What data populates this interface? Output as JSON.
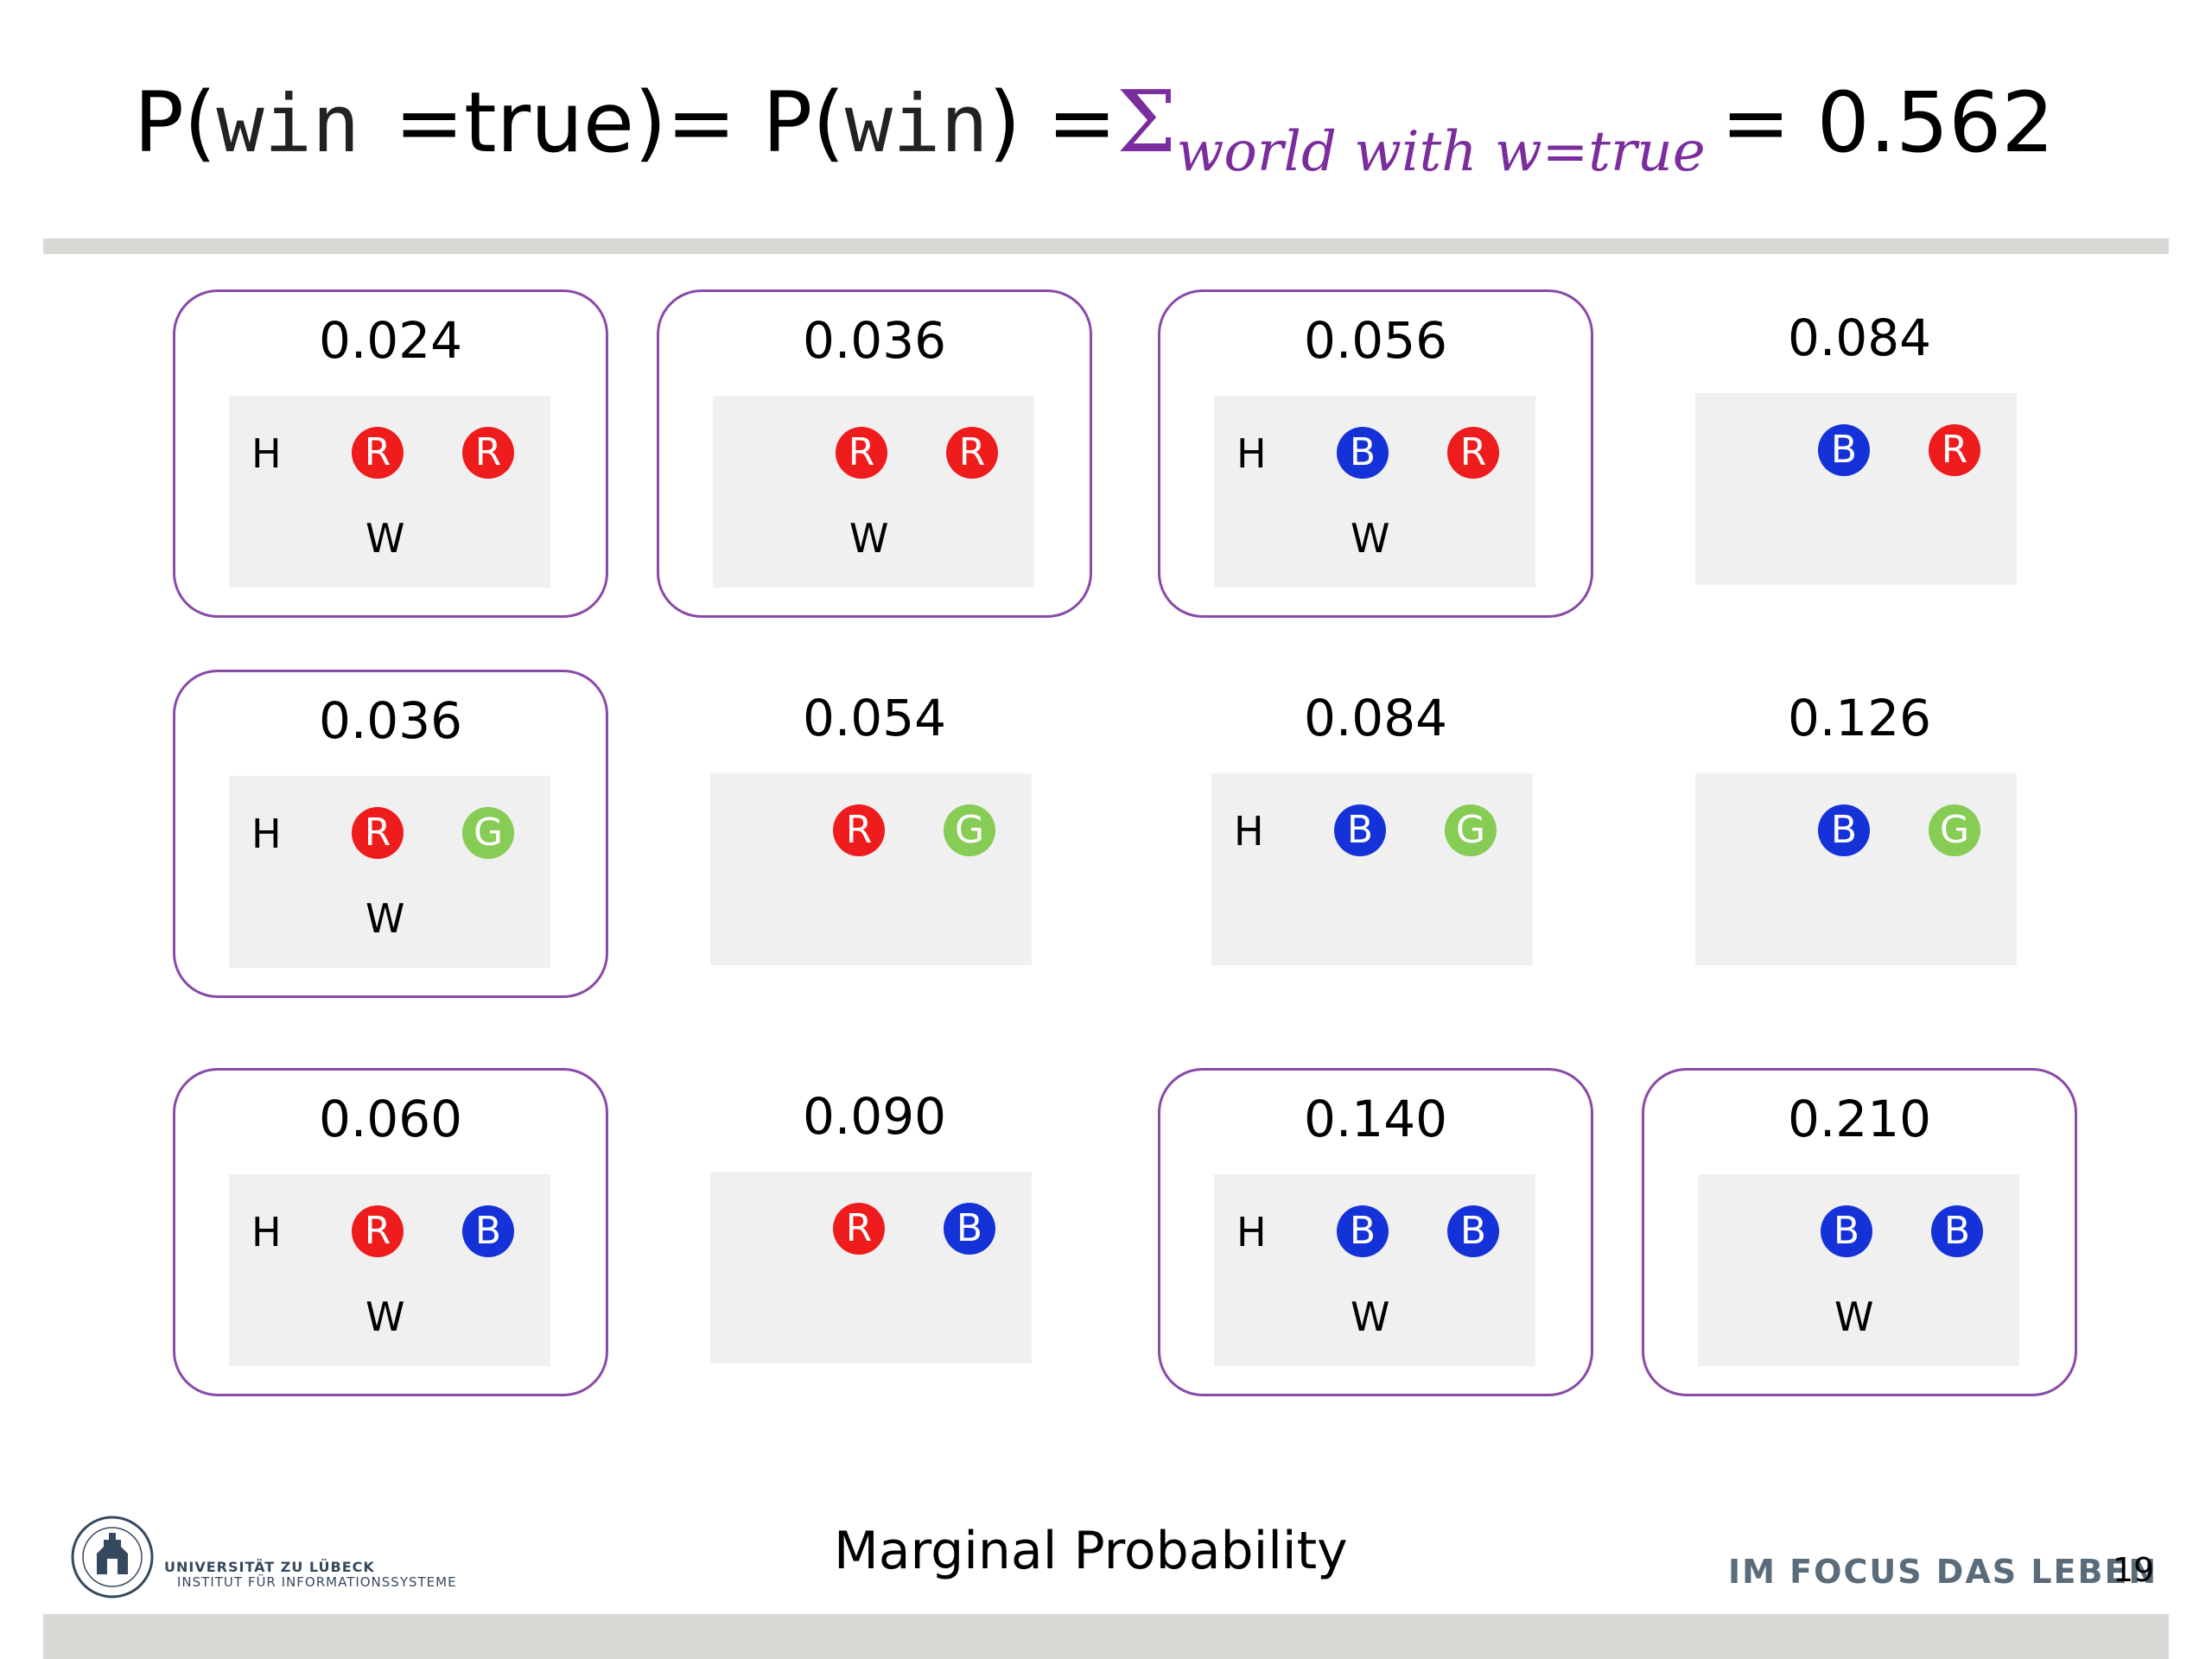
{
  "header": {
    "prefix": "P(",
    "var1": "win",
    "eq_true": "=true)= P(",
    "var2": "win",
    "close_eq": ") = ",
    "sigma": "Σ",
    "subscript": "world with w=true",
    "result": " = 0.562"
  },
  "worlds": [
    {
      "prob": "0.024",
      "framed": true,
      "h": "H",
      "w": "W",
      "balls": [
        {
          "label": "R",
          "color": "red"
        },
        {
          "label": "R",
          "color": "red"
        }
      ]
    },
    {
      "prob": "0.036",
      "framed": true,
      "h": "",
      "w": "W",
      "balls": [
        {
          "label": "R",
          "color": "red"
        },
        {
          "label": "R",
          "color": "red"
        }
      ]
    },
    {
      "prob": "0.056",
      "framed": true,
      "h": "H",
      "w": "W",
      "balls": [
        {
          "label": "B",
          "color": "blue"
        },
        {
          "label": "R",
          "color": "red"
        }
      ]
    },
    {
      "prob": "0.084",
      "framed": false,
      "h": "",
      "w": "",
      "balls": [
        {
          "label": "B",
          "color": "blue"
        },
        {
          "label": "R",
          "color": "red"
        }
      ]
    },
    {
      "prob": "0.036",
      "framed": true,
      "h": "H",
      "w": "W",
      "balls": [
        {
          "label": "R",
          "color": "red"
        },
        {
          "label": "G",
          "color": "green"
        }
      ]
    },
    {
      "prob": "0.054",
      "framed": false,
      "h": "",
      "w": "",
      "balls": [
        {
          "label": "R",
          "color": "red"
        },
        {
          "label": "G",
          "color": "green"
        }
      ]
    },
    {
      "prob": "0.084",
      "framed": false,
      "h": "H",
      "w": "",
      "balls": [
        {
          "label": "B",
          "color": "blue"
        },
        {
          "label": "G",
          "color": "green"
        }
      ]
    },
    {
      "prob": "0.126",
      "framed": false,
      "h": "",
      "w": "",
      "balls": [
        {
          "label": "B",
          "color": "blue"
        },
        {
          "label": "G",
          "color": "green"
        }
      ]
    },
    {
      "prob": "0.060",
      "framed": true,
      "h": "H",
      "w": "W",
      "balls": [
        {
          "label": "R",
          "color": "red"
        },
        {
          "label": "B",
          "color": "blue"
        }
      ]
    },
    {
      "prob": "0.090",
      "framed": false,
      "h": "",
      "w": "",
      "balls": [
        {
          "label": "R",
          "color": "red"
        },
        {
          "label": "B",
          "color": "blue"
        }
      ]
    },
    {
      "prob": "0.140",
      "framed": true,
      "h": "H",
      "w": "W",
      "balls": [
        {
          "label": "B",
          "color": "blue"
        },
        {
          "label": "B",
          "color": "blue"
        }
      ]
    },
    {
      "prob": "0.210",
      "framed": true,
      "h": "",
      "w": "W",
      "balls": [
        {
          "label": "B",
          "color": "blue"
        },
        {
          "label": "B",
          "color": "blue"
        }
      ]
    }
  ],
  "colors": {
    "frame": "#8a4aa8",
    "red": "#ee1c1c",
    "blue": "#1432d8",
    "green": "#86cc55"
  },
  "footer": {
    "title": "Marginal Probability",
    "slogan": "IM FOCUS DAS LEBEN",
    "page": "19",
    "university": "UNIVERSITÄT ZU LÜBECK",
    "institute": "INSTITUT FÜR INFORMATIONSSYSTEME"
  }
}
